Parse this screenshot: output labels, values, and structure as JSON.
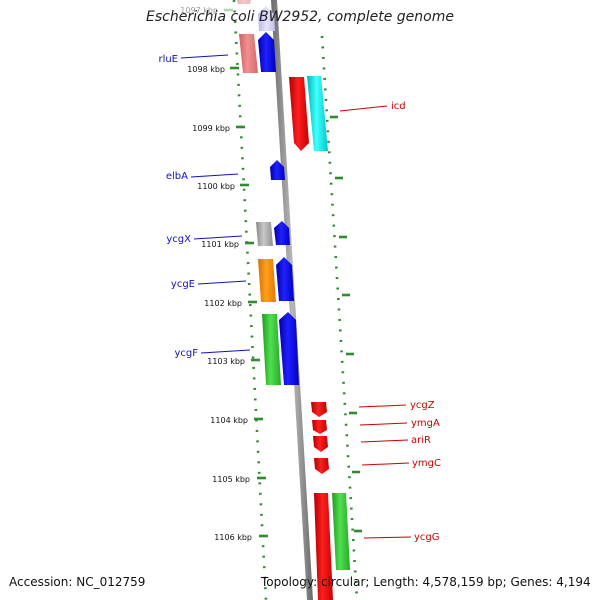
{
  "title": "Escherichia coli BW2952, complete genome",
  "footer": {
    "accession": "Accession: NC_012759",
    "topology": "Topology: circular; Length: 4,578,159 bp; Genes: 4,194"
  },
  "ticks": [
    {
      "label": "1097 kbp",
      "faded": true
    },
    {
      "label": "1098 kbp"
    },
    {
      "label": "1099 kbp"
    },
    {
      "label": "1100 kbp"
    },
    {
      "label": "1101 kbp"
    },
    {
      "label": "1102 kbp"
    },
    {
      "label": "1103 kbp"
    },
    {
      "label": "1104 kbp"
    },
    {
      "label": "1105 kbp"
    },
    {
      "label": "1106 kbp"
    }
  ],
  "genes_left": [
    {
      "label": "rluE"
    },
    {
      "label": "elbA"
    },
    {
      "label": "ycgX"
    },
    {
      "label": "ycgE"
    },
    {
      "label": "ycgF"
    }
  ],
  "genes_right": [
    {
      "label": "icd"
    },
    {
      "label": "ycgZ"
    },
    {
      "label": "ymgA"
    },
    {
      "label": "ariR"
    },
    {
      "label": "ymgC"
    },
    {
      "label": "ycgG"
    }
  ],
  "colors": {
    "left_label": "#1010c0",
    "right_label": "#cc0000",
    "backbone": "#888888",
    "scale": "#2e8b2e"
  }
}
